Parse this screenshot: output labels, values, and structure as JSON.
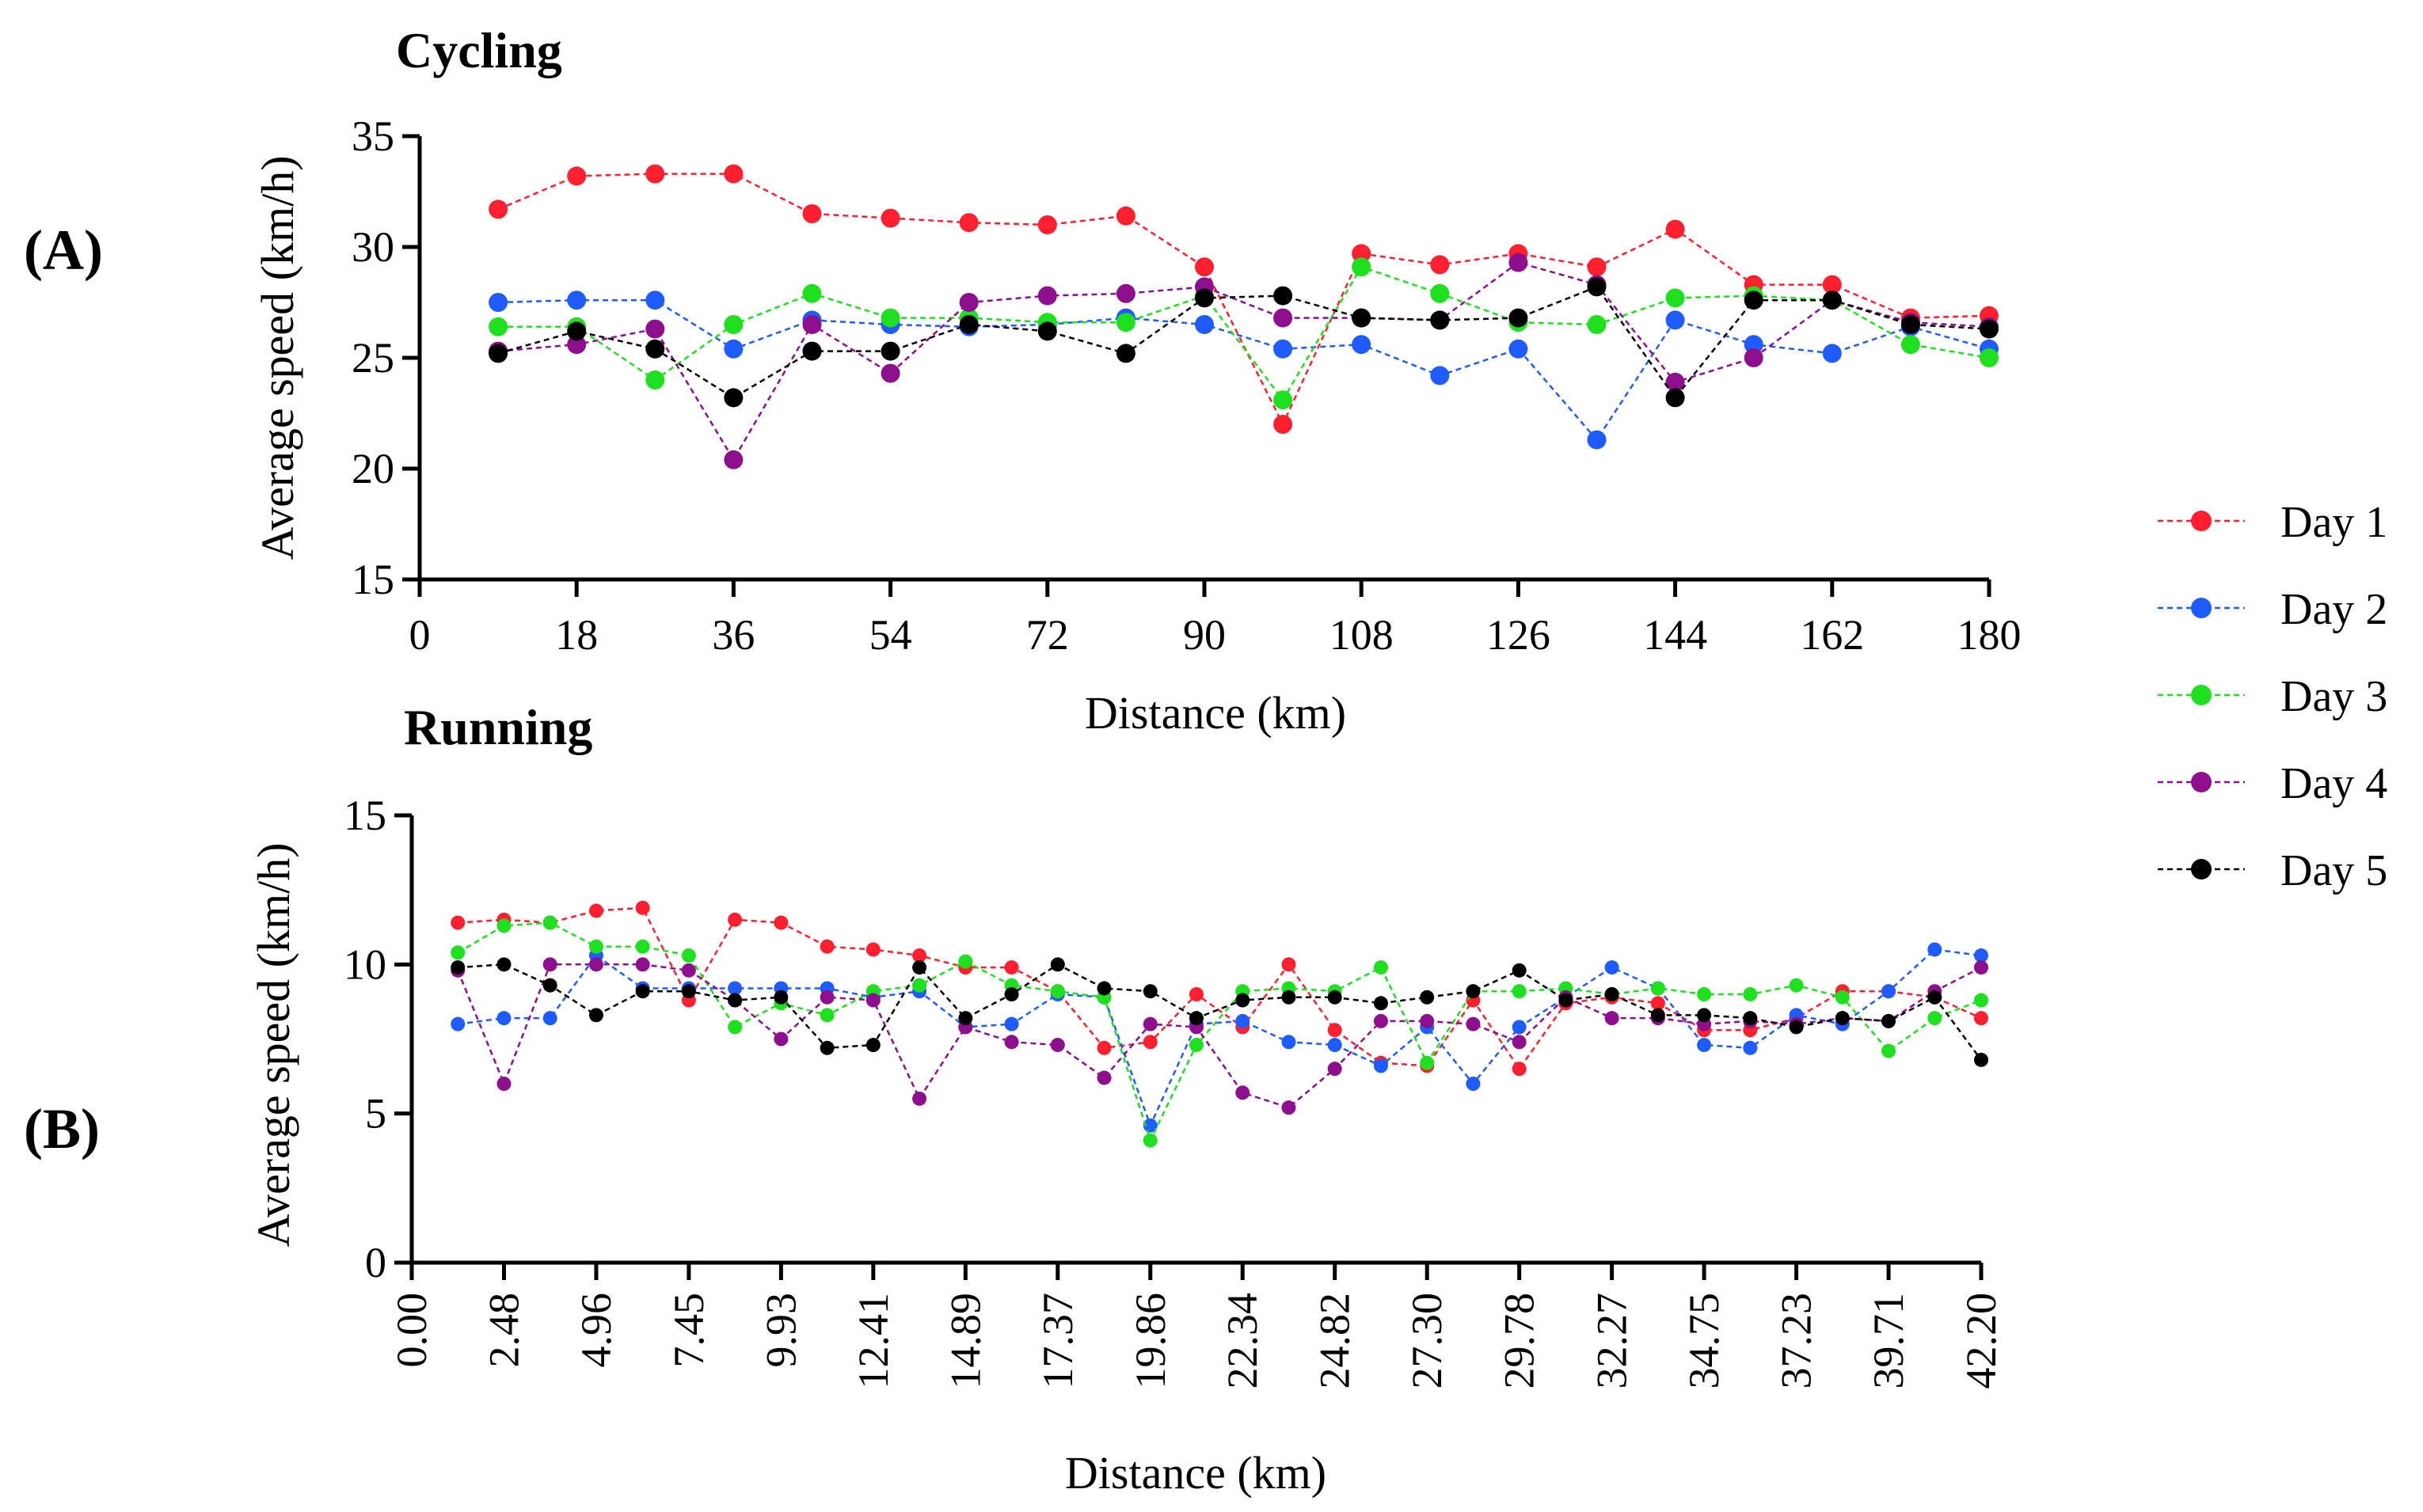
{
  "figure": {
    "panels": [
      "(A)",
      "(B)"
    ],
    "legend": [
      "Day 1",
      "Day 2",
      "Day 3",
      "Day 4",
      "Day 5"
    ],
    "series_colors": [
      "#ff1f2e",
      "#1f5cff",
      "#1ee01e",
      "#8e0f8e",
      "#000000"
    ]
  },
  "chart_data": [
    {
      "type": "line",
      "title": "Cycling",
      "xlabel": "Distance (km)",
      "ylabel": "Average speed (km/h)",
      "xlim": [
        0,
        180
      ],
      "ylim": [
        15,
        35
      ],
      "xticks": [
        0,
        18,
        36,
        54,
        72,
        90,
        108,
        126,
        144,
        162,
        180
      ],
      "xtick_labels": [
        "0",
        "18",
        "36",
        "54",
        "72",
        "90",
        "108",
        "126",
        "144",
        "162",
        "180"
      ],
      "yticks": [
        15,
        20,
        25,
        30,
        35
      ],
      "ytick_labels": [
        "15",
        "20",
        "25",
        "30",
        "35"
      ],
      "x": [
        9,
        18,
        27,
        36,
        45,
        54,
        63,
        72,
        81,
        90,
        99,
        108,
        117,
        126,
        135,
        144,
        153,
        162,
        171,
        180
      ],
      "series": [
        {
          "name": "Day 1",
          "values": [
            31.7,
            33.2,
            33.3,
            33.3,
            31.5,
            31.3,
            31.1,
            31.0,
            31.4,
            29.1,
            22.0,
            29.7,
            29.2,
            29.7,
            29.1,
            30.8,
            28.3,
            28.3,
            26.8,
            26.9
          ]
        },
        {
          "name": "Day 2",
          "values": [
            27.5,
            27.6,
            27.6,
            25.4,
            26.7,
            26.5,
            26.4,
            26.5,
            26.8,
            26.5,
            25.4,
            25.6,
            24.2,
            25.4,
            21.3,
            26.7,
            25.6,
            25.2,
            26.4,
            25.4
          ]
        },
        {
          "name": "Day 3",
          "values": [
            26.4,
            26.4,
            24.0,
            26.5,
            27.9,
            26.8,
            26.8,
            26.6,
            26.6,
            27.8,
            23.1,
            29.1,
            27.9,
            26.6,
            26.5,
            27.7,
            27.8,
            27.6,
            25.6,
            25.0
          ]
        },
        {
          "name": "Day 4",
          "values": [
            25.3,
            25.6,
            26.3,
            20.4,
            26.5,
            24.3,
            27.5,
            27.8,
            27.9,
            28.2,
            26.8,
            26.8,
            26.7,
            29.3,
            28.3,
            23.9,
            25.0,
            27.6,
            26.6,
            26.4
          ]
        },
        {
          "name": "Day 5",
          "values": [
            25.2,
            26.2,
            25.4,
            23.2,
            25.3,
            25.3,
            26.5,
            26.2,
            25.2,
            27.7,
            27.8,
            26.8,
            26.7,
            26.8,
            28.2,
            23.2,
            27.6,
            27.6,
            26.5,
            26.3
          ]
        }
      ]
    },
    {
      "type": "line",
      "title": "Running",
      "xlabel": "Distance (km)",
      "ylabel": "Average speed (km/h)",
      "xlim": [
        0,
        42.2
      ],
      "ylim": [
        0,
        15
      ],
      "xticks": [
        0,
        2.48,
        4.96,
        7.45,
        9.93,
        12.41,
        14.89,
        17.37,
        19.86,
        22.34,
        24.82,
        27.3,
        29.78,
        32.27,
        34.75,
        37.23,
        39.71,
        42.2
      ],
      "xtick_labels": [
        "0.00",
        "2.48",
        "4.96",
        "7.45",
        "9.93",
        "12.41",
        "14.89",
        "17.37",
        "19.86",
        "22.34",
        "24.82",
        "27.30",
        "29.78",
        "32.27",
        "34.75",
        "37.23",
        "39.71",
        "42.20"
      ],
      "yticks": [
        0,
        5,
        10,
        15
      ],
      "ytick_labels": [
        "0",
        "5",
        "10",
        "15"
      ],
      "x": [
        1.24,
        2.48,
        3.72,
        4.96,
        6.21,
        7.45,
        8.69,
        9.93,
        11.17,
        12.41,
        13.65,
        14.89,
        16.13,
        17.37,
        18.62,
        19.86,
        21.1,
        22.34,
        23.58,
        24.82,
        26.06,
        27.3,
        28.54,
        29.78,
        31.03,
        32.27,
        33.51,
        34.75,
        35.99,
        37.23,
        38.47,
        39.71,
        40.95,
        42.2
      ],
      "series": [
        {
          "name": "Day 1",
          "values": [
            11.4,
            11.5,
            11.4,
            11.8,
            11.9,
            8.8,
            11.5,
            11.4,
            10.6,
            10.5,
            10.3,
            9.9,
            9.9,
            9.1,
            7.2,
            7.4,
            9.0,
            7.9,
            10.0,
            7.8,
            6.7,
            6.6,
            8.8,
            6.5,
            8.7,
            8.9,
            8.7,
            7.8,
            7.8,
            8.2,
            9.1,
            9.1,
            8.9,
            8.2
          ]
        },
        {
          "name": "Day 2",
          "values": [
            8.0,
            8.2,
            8.2,
            10.3,
            9.2,
            9.2,
            9.2,
            9.2,
            9.2,
            8.9,
            9.1,
            7.9,
            8.0,
            9.0,
            8.9,
            4.6,
            8.0,
            8.1,
            7.4,
            7.3,
            6.6,
            7.9,
            6.0,
            7.9,
            8.9,
            9.9,
            9.2,
            7.3,
            7.2,
            8.3,
            8.0,
            9.1,
            10.5,
            10.3
          ]
        },
        {
          "name": "Day 3",
          "values": [
            10.4,
            11.3,
            11.4,
            10.6,
            10.6,
            10.3,
            7.9,
            8.7,
            8.3,
            9.1,
            9.3,
            10.1,
            9.3,
            9.1,
            8.9,
            4.1,
            7.3,
            9.1,
            9.2,
            9.1,
            9.9,
            6.7,
            9.1,
            9.1,
            9.2,
            9.0,
            9.2,
            9.0,
            9.0,
            9.3,
            8.9,
            7.1,
            8.2,
            8.8
          ]
        },
        {
          "name": "Day 4",
          "values": [
            9.8,
            6.0,
            10.0,
            10.0,
            10.0,
            9.8,
            8.8,
            7.5,
            8.9,
            8.8,
            5.5,
            7.9,
            7.4,
            7.3,
            6.2,
            8.0,
            7.9,
            5.7,
            5.2,
            6.5,
            8.1,
            8.1,
            8.0,
            7.4,
            8.9,
            8.2,
            8.2,
            8.0,
            8.1,
            8.0,
            8.2,
            8.1,
            9.1,
            9.9
          ]
        },
        {
          "name": "Day 5",
          "values": [
            9.9,
            10.0,
            9.3,
            8.3,
            9.1,
            9.1,
            8.8,
            8.9,
            7.2,
            7.3,
            9.9,
            8.2,
            9.0,
            10.0,
            9.2,
            9.1,
            8.2,
            8.8,
            8.9,
            8.9,
            8.7,
            8.9,
            9.1,
            9.8,
            8.8,
            9.0,
            8.3,
            8.3,
            8.2,
            7.9,
            8.2,
            8.1,
            8.9,
            6.8
          ]
        }
      ]
    }
  ]
}
